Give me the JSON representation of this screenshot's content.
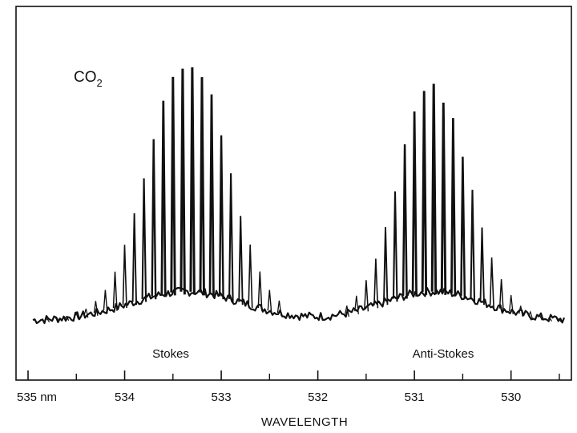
{
  "chart_data": {
    "type": "line",
    "title": "",
    "molecule": {
      "base": "CO",
      "subscript": "2"
    },
    "xlabel": "WAVELENGTH",
    "ylabel": "",
    "x_unit": "nm",
    "xlim": [
      535,
      529.4
    ],
    "x_reversed": true,
    "grid": false,
    "ticks": [
      {
        "value": 535,
        "label": "535 nm"
      },
      {
        "value": 534,
        "label": "534"
      },
      {
        "value": 533,
        "label": "533"
      },
      {
        "value": 532,
        "label": "532"
      },
      {
        "value": 531,
        "label": "531"
      },
      {
        "value": 530,
        "label": "530"
      }
    ],
    "minor_ticks": [
      534.5,
      533.5,
      532.5,
      531.5,
      530.5,
      529.5
    ],
    "bands": [
      {
        "name": "Stokes",
        "label": "Stokes",
        "center_nm": 533.35,
        "width_nm": 0.55,
        "first_nm": 534.8,
        "last_nm": 532.4,
        "spacing_nm": 0.1,
        "peak_relative": 1.0
      },
      {
        "name": "Anti-Stokes",
        "label": "Anti-Stokes",
        "center_nm": 530.8,
        "width_nm": 0.5,
        "first_nm": 531.7,
        "last_nm": 529.5,
        "spacing_nm": 0.1,
        "peak_relative": 0.88
      }
    ],
    "baseline_relative": 0.05,
    "band_wing_relative": 0.1
  }
}
